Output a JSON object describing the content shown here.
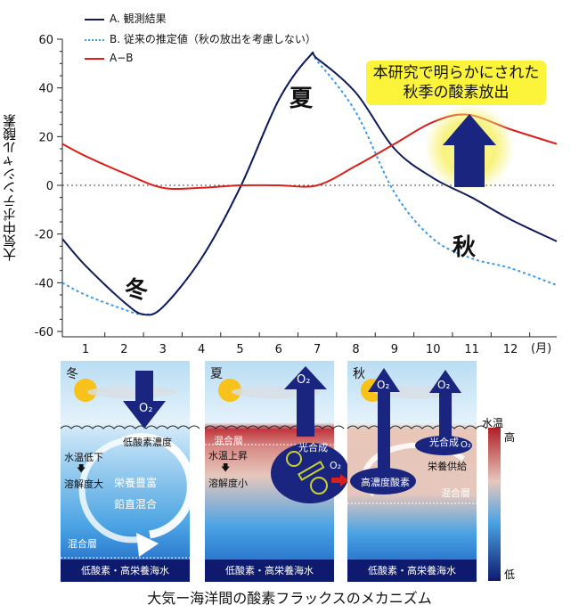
{
  "chart_data": {
    "type": "line",
    "ylabel": "大気中ポテンシャル酸素",
    "xlabel": "(月)",
    "xlim": [
      0.4,
      13.2
    ],
    "ylim": [
      -60,
      60
    ],
    "yticks": [
      60,
      40,
      20,
      0,
      -20,
      -40,
      -60
    ],
    "xticks": [
      1,
      2,
      3,
      4,
      5,
      6,
      7,
      8,
      9,
      10,
      11,
      12
    ],
    "zero_line": "dotted",
    "legend_position": "top-left",
    "series": [
      {
        "name": "A. 観測結果",
        "color": "#101a5a",
        "style": "solid",
        "x": [
          0.4,
          1,
          2,
          2.5,
          3,
          4,
          5,
          6,
          6.8,
          7,
          8,
          9,
          10,
          11,
          12,
          13.2
        ],
        "y": [
          -22,
          -33,
          -48,
          -53,
          -50,
          -30,
          -1,
          35,
          53,
          52,
          38,
          15,
          3,
          -5,
          -14,
          -23
        ]
      },
      {
        "name": "B. 従来の推定値（秋の放出を考慮しない）",
        "color": "#3a9ae8",
        "style": "dotted",
        "x": [
          0.4,
          1,
          2,
          2.5,
          3,
          4,
          5,
          6,
          6.8,
          7,
          8,
          9,
          10,
          11,
          12,
          13.2
        ],
        "y": [
          -40,
          -45,
          -51,
          -53,
          -50,
          -30,
          -1,
          35,
          53,
          51,
          30,
          -3,
          -22,
          -30,
          -34,
          -41
        ]
      },
      {
        "name": "A−B",
        "color": "#d8201c",
        "style": "solid",
        "x": [
          0.4,
          1,
          2,
          3,
          4,
          5,
          6,
          7,
          8,
          9,
          10,
          10.9,
          12,
          13.2
        ],
        "y": [
          17,
          12,
          5,
          -1,
          -1,
          0,
          0,
          0,
          8,
          17,
          26,
          29,
          23,
          17
        ]
      }
    ],
    "annotations": {
      "summer": "夏",
      "winter": "冬",
      "autumn": "秋",
      "callout_line1": "本研究で明らかにされた",
      "callout_line2": "秋季の酸素放出"
    }
  },
  "diagram": {
    "winter": {
      "season": "冬",
      "o2": "O₂",
      "low_o2_conc": "低酸素濃度",
      "temp_down": "水温低下",
      "arrow": "🡇",
      "solubility_up": "溶解度大",
      "nutrient_rich": "栄養豊富",
      "vertical_mixing": "鉛直混合",
      "mixed_layer": "混合層",
      "deep_water": "低酸素・高栄養海水"
    },
    "summer": {
      "season": "夏",
      "o2": "O₂",
      "o2_small": "O₂",
      "mixed_layer": "混合層",
      "temp_up": "水温上昇",
      "arrow": "🡇",
      "solubility_down": "溶解度小",
      "photosynthesis": "光合成",
      "deep_water": "低酸素・高栄養海水"
    },
    "autumn": {
      "season": "秋",
      "o2_a": "O₂",
      "o2_b": "O₂",
      "o2_small": "O₂",
      "photosynthesis": "光合成",
      "nutrient_supply": "栄養供給",
      "high_o2": "高濃度酸素",
      "mixed_layer": "混合層",
      "deep_water": "低酸素・高栄養海水"
    },
    "colorbar": {
      "title": "水温",
      "high": "高",
      "low": "低"
    },
    "caption": "大気ー海洋間の酸素フラックスのメカニズム"
  }
}
